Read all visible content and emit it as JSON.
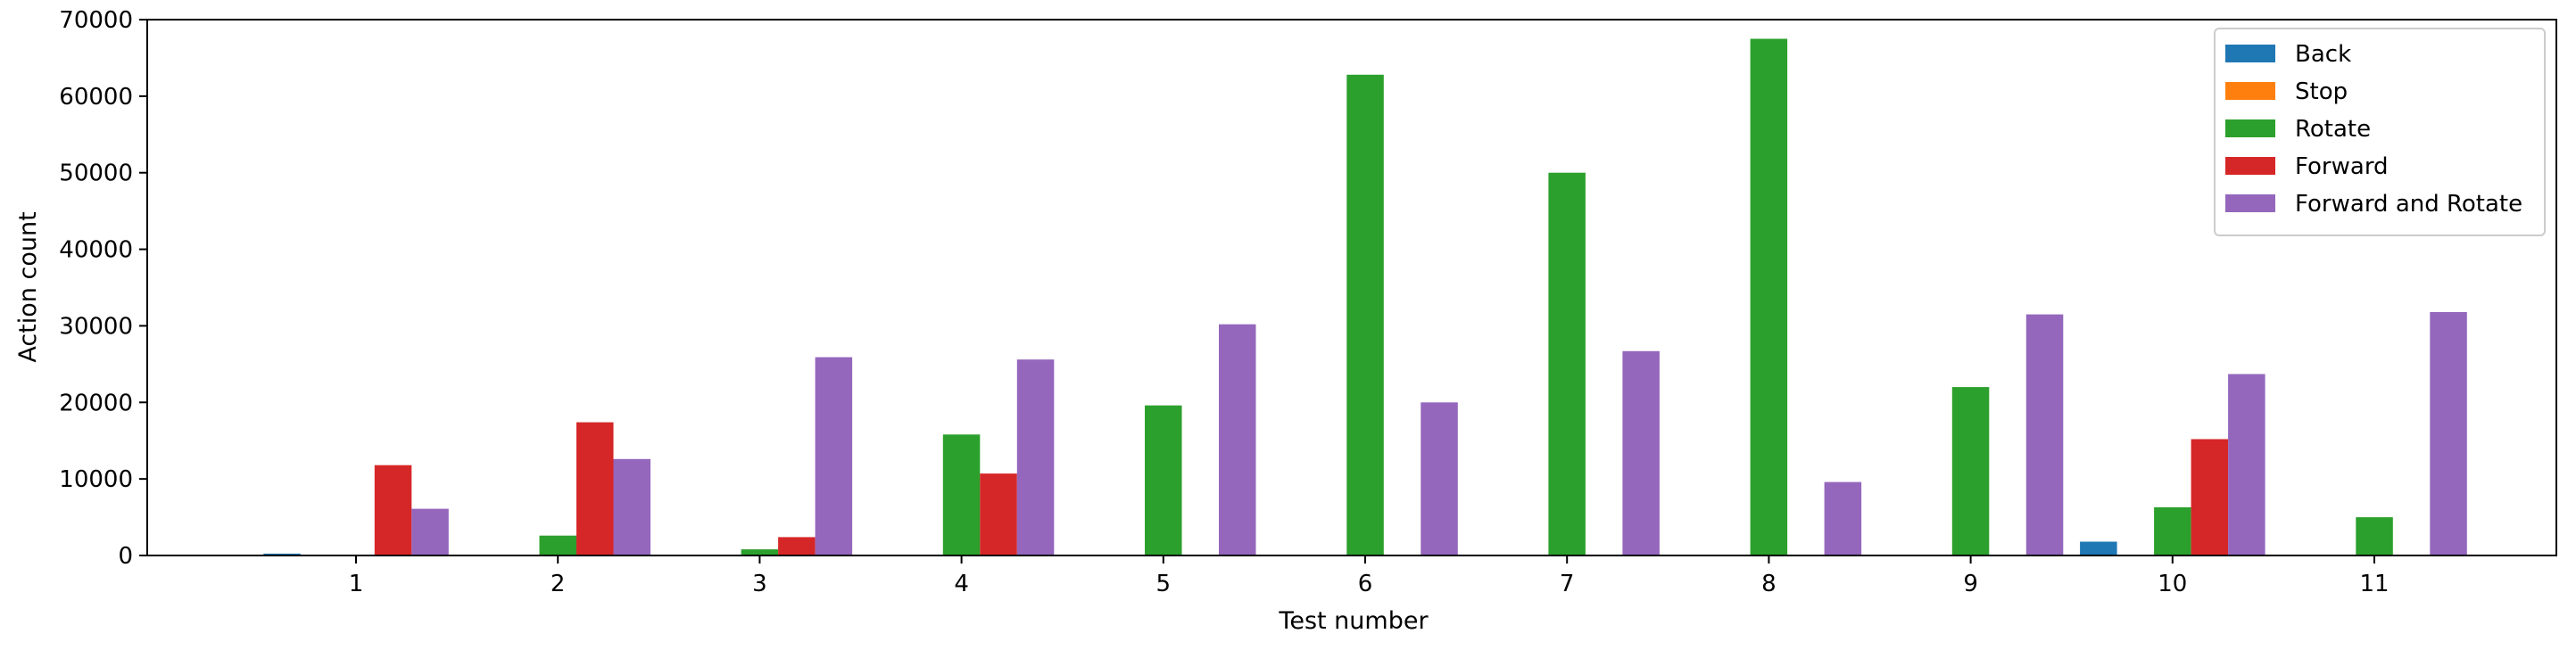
{
  "chart_data": {
    "type": "bar",
    "categories": [
      "1",
      "2",
      "3",
      "4",
      "5",
      "6",
      "7",
      "8",
      "9",
      "10",
      "11"
    ],
    "series": [
      {
        "name": "Back",
        "color": "#1f77b4",
        "values": [
          250,
          0,
          0,
          0,
          0,
          0,
          0,
          0,
          0,
          1800,
          0
        ]
      },
      {
        "name": "Stop",
        "color": "#ff7f0e",
        "values": [
          0,
          0,
          0,
          0,
          0,
          0,
          0,
          0,
          0,
          0,
          0
        ]
      },
      {
        "name": "Rotate",
        "color": "#2ca02c",
        "values": [
          0,
          2600,
          800,
          15800,
          19600,
          62800,
          50000,
          67500,
          22000,
          6300,
          5000
        ]
      },
      {
        "name": "Forward",
        "color": "#d62728",
        "values": [
          11800,
          17400,
          2400,
          10700,
          0,
          0,
          0,
          0,
          0,
          15200,
          0
        ]
      },
      {
        "name": "Forward and Rotate",
        "color": "#9467bd",
        "values": [
          6100,
          12600,
          25900,
          25600,
          30200,
          20000,
          26700,
          9600,
          31500,
          23700,
          31800
        ]
      }
    ],
    "xlabel": "Test number",
    "ylabel": "Action count",
    "ylim": [
      0,
      70000
    ],
    "yticks": [
      0,
      10000,
      20000,
      30000,
      40000,
      50000,
      60000,
      70000
    ],
    "ytick_labels": [
      "0",
      "10000",
      "20000",
      "30000",
      "40000",
      "50000",
      "60000",
      "70000"
    ],
    "legend_position": "top-right",
    "grid": false
  }
}
